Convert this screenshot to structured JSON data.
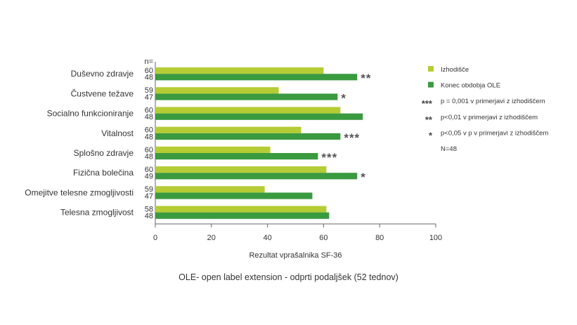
{
  "chart_data": {
    "type": "bar",
    "orientation": "horizontal",
    "n_header": "n=",
    "categories": [
      "Duševno zdravje",
      "Čustvene težave",
      "Socialno funkcioniranje",
      "Vitalnost",
      "Splošno zdravje",
      "Fizična bolečina",
      "Omejitve telesne zmogljivosti",
      "Telesna zmogljivost"
    ],
    "series": [
      {
        "name": "Izhodišče",
        "color": "#b5cc34",
        "values": [
          60,
          44,
          66,
          52,
          41,
          61,
          39,
          61
        ],
        "n": [
          "60",
          "59",
          "60",
          "60",
          "60",
          "60",
          "59",
          "58"
        ]
      },
      {
        "name": "Konec obdobja OLE",
        "color": "#3a9a3f",
        "values": [
          72,
          65,
          74,
          66,
          58,
          72,
          56,
          62
        ],
        "n": [
          "48",
          "47",
          "48",
          "48",
          "48",
          "49",
          "47",
          "48"
        ]
      }
    ],
    "significance": [
      "**",
      "*",
      "",
      "***",
      "***",
      "*",
      "",
      ""
    ],
    "xlabel": "Rezultat vprašalnika SF-36",
    "xlim": [
      0,
      100
    ],
    "xticks": [
      "0",
      "20",
      "40",
      "60",
      "80",
      "100"
    ],
    "legend": {
      "position": "right",
      "entries": [
        {
          "symbol": "",
          "label": "Izhodišče",
          "color": "#b5cc34"
        },
        {
          "symbol": "",
          "label": "Konec obdobja OLE",
          "color": "#3a9a3f"
        },
        {
          "symbol": "***",
          "label": "p = 0,001 v primerjavi z izhodiščem"
        },
        {
          "symbol": "**",
          "label": "p<0,01 v primerjavi z izhodiščem"
        },
        {
          "symbol": "*",
          "label": "p<0,05 v p v primerjavi z izhodiščem"
        },
        {
          "symbol": "",
          "label": "N=48"
        }
      ]
    },
    "grid": false
  },
  "caption": "OLE- open label extension - odprti podaljšek (52 tednov)"
}
